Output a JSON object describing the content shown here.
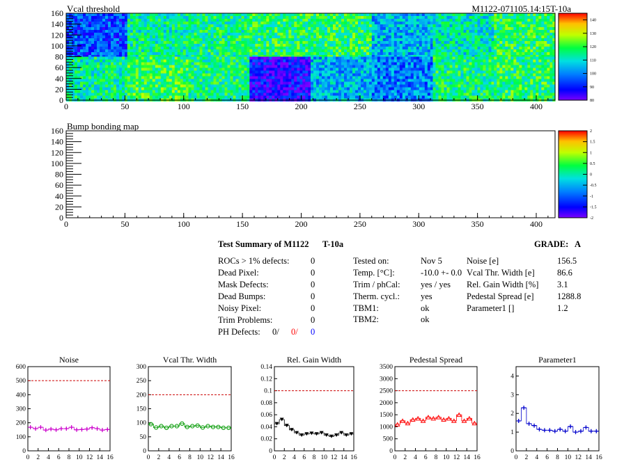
{
  "map1": {
    "title": "Vcal threshold",
    "id_label": "M1122-071105.14:15T-10a",
    "xticks": [
      "0",
      "50",
      "100",
      "150",
      "200",
      "250",
      "300",
      "350",
      "400"
    ],
    "xmax": 416,
    "yticks": [
      "0",
      "20",
      "40",
      "60",
      "80",
      "100",
      "120",
      "140",
      "160"
    ],
    "ymax": 160,
    "palette_ticks": [
      "80",
      "90",
      "100",
      "110",
      "120",
      "130",
      "140"
    ],
    "palette_range": [
      80,
      145
    ],
    "roc_grid": {
      "cols": 8,
      "rows": 2
    },
    "roc_level": [
      [
        0.22,
        0.52,
        0.55,
        0.58,
        0.58,
        0.38,
        0.48,
        0.58
      ],
      [
        0.52,
        0.6,
        0.55,
        0.1,
        0.38,
        0.3,
        0.55,
        0.58
      ]
    ],
    "colors": {
      "frame": "#000000"
    }
  },
  "map2": {
    "title": "Bump bonding map",
    "xticks": [
      "0",
      "50",
      "100",
      "150",
      "200",
      "250",
      "300",
      "350",
      "400"
    ],
    "xmax": 416,
    "yticks": [
      "0",
      "20",
      "40",
      "60",
      "80",
      "100",
      "120",
      "140",
      "160"
    ],
    "ymax": 160,
    "palette_ticks": [
      "-2",
      "-1.5",
      "-1",
      "-0.5",
      "0",
      "0.5",
      "1",
      "1.5",
      "2"
    ],
    "palette_range": [
      -2,
      2
    ]
  },
  "summary": {
    "title": "Test Summary of M1122",
    "test": "T-10a",
    "grade_label": "GRADE:",
    "grade": "A",
    "defects": [
      {
        "label": "ROCs > 1% defects:",
        "value": "0"
      },
      {
        "label": "Dead Pixel:",
        "value": "0"
      },
      {
        "label": "Mask Defects:",
        "value": "0"
      },
      {
        "label": "Dead Bumps:",
        "value": "0"
      },
      {
        "label": "Noisy Pixel:",
        "value": "0"
      },
      {
        "label": "Trim Problems:",
        "value": "0"
      }
    ],
    "ph_defects": {
      "label": "PH Defects:",
      "v1": "0/",
      "v2": "0/",
      "v3": "0",
      "c1": "#000000",
      "c2": "#ff0000",
      "c3": "#0000ff"
    },
    "conditions": [
      {
        "label": "Tested on:",
        "value": "Nov 5"
      },
      {
        "label": "Temp. [°C]:",
        "value": "-10.0 +- 0.0"
      },
      {
        "label": "Trim / phCal:",
        "value": "yes / yes"
      },
      {
        "label": "Therm. cycl.:",
        "value": "yes"
      },
      {
        "label": "TBM1:",
        "value": "ok"
      },
      {
        "label": "TBM2:",
        "value": "ok"
      }
    ],
    "stats": [
      {
        "label": "Noise [e]",
        "value": "156.5"
      },
      {
        "label": "Vcal Thr. Width [e]",
        "value": "86.6"
      },
      {
        "label": "Rel. Gain Width [%]",
        "value": "3.1"
      },
      {
        "label": "Pedestal Spread [e]",
        "value": "1288.8"
      },
      {
        "label": "Parameter1 []",
        "value": "1.2"
      }
    ]
  },
  "chart_data": [
    {
      "type": "scatter",
      "title": "Noise",
      "x": [
        0,
        1,
        2,
        3,
        4,
        5,
        6,
        7,
        8,
        9,
        10,
        11,
        12,
        13,
        14,
        15
      ],
      "values": [
        168,
        158,
        168,
        148,
        155,
        150,
        158,
        158,
        168,
        150,
        152,
        155,
        165,
        158,
        148,
        152
      ],
      "ylim": [
        0,
        600
      ],
      "yticks": [
        "0",
        "100",
        "200",
        "300",
        "400",
        "500",
        "600"
      ],
      "xticks": [
        "0",
        "2",
        "4",
        "6",
        "8",
        "10",
        "12",
        "14",
        "16"
      ],
      "xlim": [
        0,
        16
      ],
      "threshold": 500,
      "marker": "cross",
      "color": "#cc00cc"
    },
    {
      "type": "scatter",
      "title": "Vcal Thr. Width",
      "x": [
        0,
        1,
        2,
        3,
        4,
        5,
        6,
        7,
        8,
        9,
        10,
        11,
        12,
        13,
        14,
        15
      ],
      "values": [
        95,
        83,
        88,
        82,
        88,
        88,
        97,
        85,
        88,
        90,
        83,
        88,
        85,
        85,
        82,
        82
      ],
      "ylim": [
        0,
        300
      ],
      "yticks": [
        "0",
        "50",
        "100",
        "150",
        "200",
        "250",
        "300"
      ],
      "xticks": [
        "0",
        "2",
        "4",
        "6",
        "8",
        "10",
        "12",
        "14",
        "16"
      ],
      "xlim": [
        0,
        16
      ],
      "threshold": 200,
      "marker": "circle",
      "color": "#009900"
    },
    {
      "type": "scatter",
      "title": "Rel. Gain Width",
      "x": [
        0,
        1,
        2,
        3,
        4,
        5,
        6,
        7,
        8,
        9,
        10,
        11,
        12,
        13,
        14,
        15
      ],
      "values": [
        0.045,
        0.052,
        0.042,
        0.035,
        0.03,
        0.026,
        0.028,
        0.029,
        0.028,
        0.03,
        0.026,
        0.024,
        0.026,
        0.03,
        0.026,
        0.028
      ],
      "ylim": [
        0,
        0.14
      ],
      "yticks": [
        "0",
        "0.02",
        "0.04",
        "0.06",
        "0.08",
        "0.1",
        "0.12",
        "0.14"
      ],
      "xticks": [
        "0",
        "2",
        "4",
        "6",
        "8",
        "10",
        "12",
        "14",
        "16"
      ],
      "xlim": [
        0,
        16
      ],
      "threshold": 0.1,
      "marker": "triangle-down",
      "color": "#000000"
    },
    {
      "type": "scatter",
      "title": "Pedestal Spread",
      "x": [
        0,
        1,
        2,
        3,
        4,
        5,
        6,
        7,
        8,
        9,
        10,
        11,
        12,
        13,
        14,
        15
      ],
      "values": [
        1100,
        1250,
        1150,
        1300,
        1350,
        1250,
        1400,
        1350,
        1400,
        1300,
        1350,
        1250,
        1500,
        1250,
        1350,
        1150
      ],
      "ylim": [
        0,
        3500
      ],
      "yticks": [
        "0",
        "500",
        "1000",
        "1500",
        "2000",
        "2500",
        "3000",
        "3500"
      ],
      "xticks": [
        "0",
        "2",
        "4",
        "6",
        "8",
        "10",
        "12",
        "14",
        "16"
      ],
      "xlim": [
        0,
        16
      ],
      "threshold": 2500,
      "marker": "triangle-up",
      "color": "#ff0000"
    },
    {
      "type": "scatter",
      "title": "Parameter1",
      "x": [
        0,
        1,
        2,
        3,
        4,
        5,
        6,
        7,
        8,
        9,
        10,
        11,
        12,
        13,
        14,
        15
      ],
      "values": [
        1.6,
        2.3,
        1.45,
        1.35,
        1.15,
        1.1,
        1.1,
        1.05,
        1.15,
        1.05,
        1.3,
        1.0,
        1.05,
        1.25,
        1.05,
        1.05
      ],
      "ylim": [
        0,
        4.5
      ],
      "yticks": [
        "0",
        "1",
        "2",
        "3",
        "4"
      ],
      "xticks": [
        "0",
        "2",
        "4",
        "6",
        "8",
        "10",
        "12",
        "14",
        "16"
      ],
      "xlim": [
        0,
        16
      ],
      "threshold": null,
      "marker": "cross",
      "color": "#0000cc"
    }
  ]
}
